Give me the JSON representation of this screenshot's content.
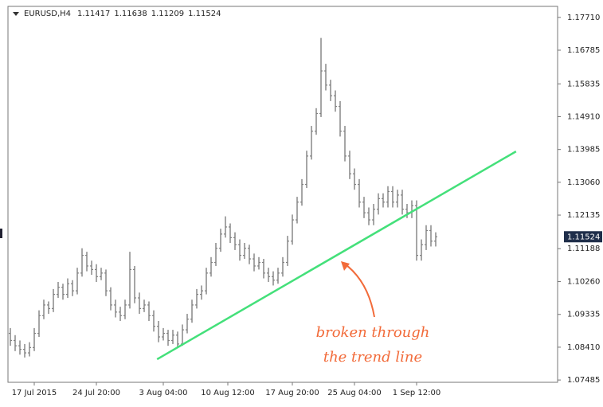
{
  "chart_data": {
    "type": "ohlc",
    "title": {
      "symbol": "EURUSD,H4",
      "values": [
        1.11417,
        1.11638,
        1.11209,
        1.11524
      ]
    },
    "color": "#7f7f7f",
    "ylim": [
      1.0742,
      1.1802
    ],
    "yticks": [
      {
        "value": 1.1771,
        "label": "1.17710"
      },
      1.16785,
      1.15835,
      {
        "value": 1.1491,
        "label": "1.14910"
      },
      1.13985,
      {
        "value": 1.1306,
        "label": "1.13060"
      },
      1.12135,
      1.11188,
      {
        "value": 1.1026,
        "label": "1.10260"
      },
      1.09335,
      {
        "value": 1.0841,
        "label": "1.08410"
      },
      1.07485
    ],
    "xlim": [
      -0.5,
      114.5
    ],
    "xticks": [
      {
        "value": 5,
        "label": "17 Jul 2015"
      },
      {
        "value": 18,
        "label": "24 Jul 20:00"
      },
      {
        "value": 32,
        "label": "3 Aug 04:00"
      },
      {
        "value": 45.5,
        "label": "10 Aug 12:00"
      },
      {
        "value": 59,
        "label": "17 Aug 20:00"
      },
      {
        "value": 72,
        "label": "25 Aug 04:00"
      },
      {
        "value": 85,
        "label": "1 Sep 12:00"
      }
    ],
    "grid": false,
    "ohlc": [
      [
        1.088,
        1.0895,
        1.0845,
        1.086
      ],
      [
        1.086,
        1.0875,
        1.083,
        1.0845
      ],
      [
        1.0845,
        1.086,
        1.082,
        1.0835
      ],
      [
        1.0835,
        1.085,
        1.0812,
        1.0825
      ],
      [
        1.0825,
        1.0855,
        1.0815,
        1.084
      ],
      [
        1.084,
        1.0895,
        1.083,
        1.088
      ],
      [
        1.088,
        1.0945,
        1.087,
        1.093
      ],
      [
        1.093,
        1.0975,
        1.092,
        1.096
      ],
      [
        1.096,
        1.097,
        1.0935,
        1.095
      ],
      [
        1.095,
        1.1005,
        1.094,
        1.099
      ],
      [
        1.099,
        1.1025,
        1.098,
        1.101
      ],
      [
        1.101,
        1.102,
        1.0975,
        1.099
      ],
      [
        1.099,
        1.1035,
        1.098,
        1.102
      ],
      [
        1.102,
        1.103,
        1.0985,
        1.1
      ],
      [
        1.1,
        1.1065,
        1.099,
        1.105
      ],
      [
        1.105,
        1.112,
        1.104,
        1.11
      ],
      [
        1.11,
        1.111,
        1.1055,
        1.107
      ],
      [
        1.107,
        1.1085,
        1.1045,
        1.106
      ],
      [
        1.106,
        1.1075,
        1.1025,
        1.104
      ],
      [
        1.104,
        1.1065,
        1.103,
        1.105
      ],
      [
        1.105,
        1.106,
        1.0985,
        1.1
      ],
      [
        1.1,
        1.101,
        1.0945,
        1.096
      ],
      [
        1.096,
        1.0975,
        1.0925,
        1.094
      ],
      [
        1.094,
        1.0955,
        1.0915,
        1.093
      ],
      [
        1.093,
        1.0975,
        1.092,
        1.096
      ],
      [
        1.096,
        1.111,
        1.095,
        1.106
      ],
      [
        1.106,
        1.107,
        1.0965,
        1.098
      ],
      [
        1.098,
        1.0995,
        1.0935,
        1.095
      ],
      [
        1.095,
        1.0975,
        1.094,
        1.096
      ],
      [
        1.096,
        1.097,
        1.0915,
        1.093
      ],
      [
        1.093,
        1.0945,
        1.0885,
        1.09
      ],
      [
        1.09,
        1.0915,
        1.0855,
        1.087
      ],
      [
        1.087,
        1.0895,
        1.086,
        1.088
      ],
      [
        1.088,
        1.089,
        1.0845,
        1.086
      ],
      [
        1.086,
        1.089,
        1.085,
        1.0875
      ],
      [
        1.0875,
        1.0885,
        1.084,
        1.085
      ],
      [
        1.085,
        1.0905,
        1.0845,
        1.089
      ],
      [
        1.089,
        1.0935,
        1.088,
        1.092
      ],
      [
        1.092,
        1.0975,
        1.091,
        1.096
      ],
      [
        1.096,
        1.1005,
        1.095,
        1.099
      ],
      [
        1.099,
        1.1015,
        1.0975,
        1.1
      ],
      [
        1.1,
        1.1065,
        1.099,
        1.105
      ],
      [
        1.105,
        1.1095,
        1.104,
        1.108
      ],
      [
        1.108,
        1.1135,
        1.107,
        1.112
      ],
      [
        1.112,
        1.1175,
        1.111,
        1.116
      ],
      [
        1.116,
        1.121,
        1.115,
        1.118
      ],
      [
        1.118,
        1.119,
        1.1135,
        1.115
      ],
      [
        1.115,
        1.1165,
        1.1115,
        1.113
      ],
      [
        1.113,
        1.1145,
        1.1085,
        1.11
      ],
      [
        1.11,
        1.1135,
        1.109,
        1.112
      ],
      [
        1.112,
        1.113,
        1.1075,
        1.109
      ],
      [
        1.109,
        1.1105,
        1.1055,
        1.107
      ],
      [
        1.107,
        1.1095,
        1.106,
        1.108
      ],
      [
        1.108,
        1.109,
        1.1035,
        1.105
      ],
      [
        1.105,
        1.1065,
        1.1025,
        1.104
      ],
      [
        1.104,
        1.1055,
        1.1015,
        1.103
      ],
      [
        1.103,
        1.1065,
        1.102,
        1.105
      ],
      [
        1.105,
        1.1095,
        1.104,
        1.108
      ],
      [
        1.108,
        1.1155,
        1.107,
        1.114
      ],
      [
        1.114,
        1.1215,
        1.113,
        1.12
      ],
      [
        1.12,
        1.1265,
        1.119,
        1.125
      ],
      [
        1.125,
        1.1315,
        1.124,
        1.13
      ],
      [
        1.13,
        1.1395,
        1.129,
        1.138
      ],
      [
        1.138,
        1.1465,
        1.137,
        1.145
      ],
      [
        1.145,
        1.1515,
        1.144,
        1.15
      ],
      [
        1.15,
        1.1713,
        1.149,
        1.162
      ],
      [
        1.162,
        1.164,
        1.1565,
        1.158
      ],
      [
        1.158,
        1.1595,
        1.1535,
        1.155
      ],
      [
        1.155,
        1.1565,
        1.1505,
        1.152
      ],
      [
        1.152,
        1.1535,
        1.1435,
        1.145
      ],
      [
        1.145,
        1.1465,
        1.1365,
        1.138
      ],
      [
        1.138,
        1.1395,
        1.1315,
        1.133
      ],
      [
        1.133,
        1.1345,
        1.1285,
        1.13
      ],
      [
        1.13,
        1.1315,
        1.1235,
        1.125
      ],
      [
        1.125,
        1.1265,
        1.1205,
        1.122
      ],
      [
        1.122,
        1.1235,
        1.1185,
        1.12
      ],
      [
        1.12,
        1.1245,
        1.1185,
        1.123
      ],
      [
        1.123,
        1.1275,
        1.1215,
        1.126
      ],
      [
        1.126,
        1.1275,
        1.1235,
        1.125
      ],
      [
        1.125,
        1.1295,
        1.1235,
        1.128
      ],
      [
        1.128,
        1.1295,
        1.1235,
        1.125
      ],
      [
        1.125,
        1.1285,
        1.1235,
        1.127
      ],
      [
        1.127,
        1.1285,
        1.1215,
        1.123
      ],
      [
        1.123,
        1.1245,
        1.1205,
        1.122
      ],
      [
        1.122,
        1.1255,
        1.1205,
        1.124
      ],
      [
        1.124,
        1.1255,
        1.1085,
        1.11
      ],
      [
        1.11,
        1.1145,
        1.1085,
        1.113
      ],
      [
        1.113,
        1.1185,
        1.1115,
        1.117
      ],
      [
        1.117,
        1.1185,
        1.1125,
        1.114
      ],
      [
        1.114,
        1.1165,
        1.1125,
        1.11524
      ]
    ],
    "trendline": {
      "x": [
        30.7,
        105.8
      ],
      "y": [
        1.0807,
        1.1393
      ],
      "color": "#44e07a"
    },
    "annotation": {
      "lines": [
        "broken through",
        "the trend line"
      ],
      "color": "#f26b3a"
    }
  }
}
